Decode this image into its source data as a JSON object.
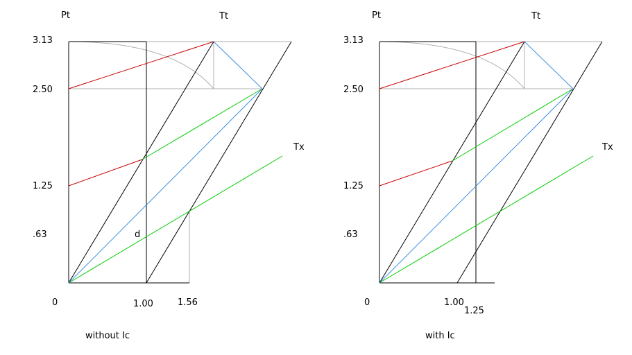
{
  "panels": [
    {
      "axis_labels": {
        "y": "Pt",
        "top": "Tt",
        "right": "Tx"
      },
      "y_ticks": [
        "3.13",
        "2.50",
        "1.25",
        ".63"
      ],
      "x_ticks": [
        "0",
        "1.00",
        "1.56"
      ],
      "point_label": "d",
      "caption": "without Ic"
    },
    {
      "axis_labels": {
        "y": "Pt",
        "top": "Tt",
        "right": "Tx"
      },
      "y_ticks": [
        "3.13",
        "2.50",
        "1.25",
        ".63"
      ],
      "x_ticks": [
        "0",
        "1.00",
        "1.25"
      ],
      "caption": "with Ic"
    }
  ]
}
